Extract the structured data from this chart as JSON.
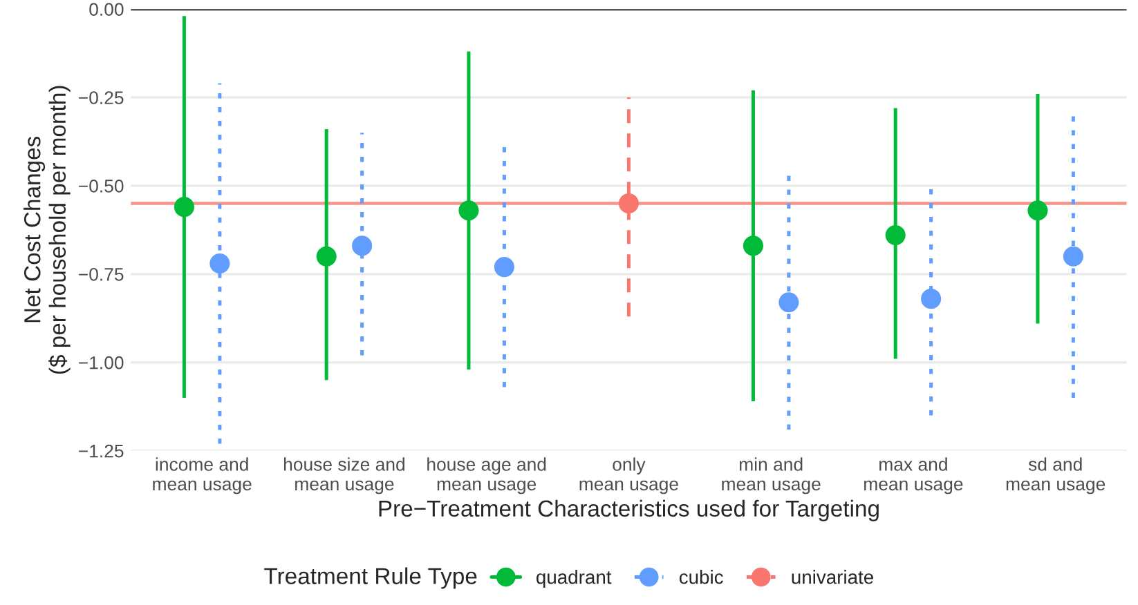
{
  "chart_data": {
    "type": "scatter",
    "xlabel": "Pre−Treatment Characteristics used for Targeting",
    "ylabel": "Net Cost Changes\n($ per household per month)",
    "legend_title": "Treatment Rule Type",
    "categories": [
      "income and\nmean usage",
      "house size and\nmean usage",
      "house age and\nmean usage",
      "only\nmean usage",
      "min and\nmean usage",
      "max and\nmean usage",
      "sd and\nmean usage"
    ],
    "series": [
      {
        "name": "quadrant",
        "color": "#00ba38",
        "line_style": "solid",
        "values": [
          -0.56,
          -0.7,
          -0.57,
          null,
          -0.67,
          -0.64,
          -0.57
        ],
        "errors": [
          [
            -1.1,
            -0.02
          ],
          [
            -1.05,
            -0.34
          ],
          [
            -1.02,
            -0.12
          ],
          null,
          [
            -1.11,
            -0.23
          ],
          [
            -0.99,
            -0.28
          ],
          [
            -0.89,
            -0.24
          ]
        ]
      },
      {
        "name": "cubic",
        "color": "#619cff",
        "line_style": "dotted",
        "values": [
          -0.72,
          -0.67,
          -0.73,
          null,
          -0.83,
          -0.82,
          -0.7
        ],
        "errors": [
          [
            -1.23,
            -0.21
          ],
          [
            -0.98,
            -0.35
          ],
          [
            -1.07,
            -0.39
          ],
          null,
          [
            -1.19,
            -0.47
          ],
          [
            -1.15,
            -0.51
          ],
          [
            -1.1,
            -0.3
          ]
        ]
      },
      {
        "name": "univariate",
        "color": "#f8766d",
        "line_style": "dashed",
        "values": [
          null,
          null,
          null,
          -0.55,
          null,
          null,
          null
        ],
        "errors": [
          null,
          null,
          null,
          [
            -0.87,
            -0.25
          ],
          null,
          null,
          null
        ]
      }
    ],
    "ref_lines": [
      {
        "axis": "y",
        "value": 0,
        "color": "#333333",
        "line_style": "solid"
      },
      {
        "axis": "y",
        "value": -0.55,
        "color": "#f8938b",
        "line_style": "solid"
      }
    ],
    "ylim": [
      -1.25,
      0
    ],
    "yticks": [
      {
        "value": 0,
        "label": "0.00"
      },
      {
        "value": -0.25,
        "label": "−0.25"
      },
      {
        "value": -0.5,
        "label": "−0.50"
      },
      {
        "value": -0.75,
        "label": "−0.75"
      },
      {
        "value": -1.0,
        "label": "−1.00"
      },
      {
        "value": -1.25,
        "label": "−1.25"
      }
    ],
    "grid": "y",
    "legend": "bottom",
    "marker": "circle"
  }
}
